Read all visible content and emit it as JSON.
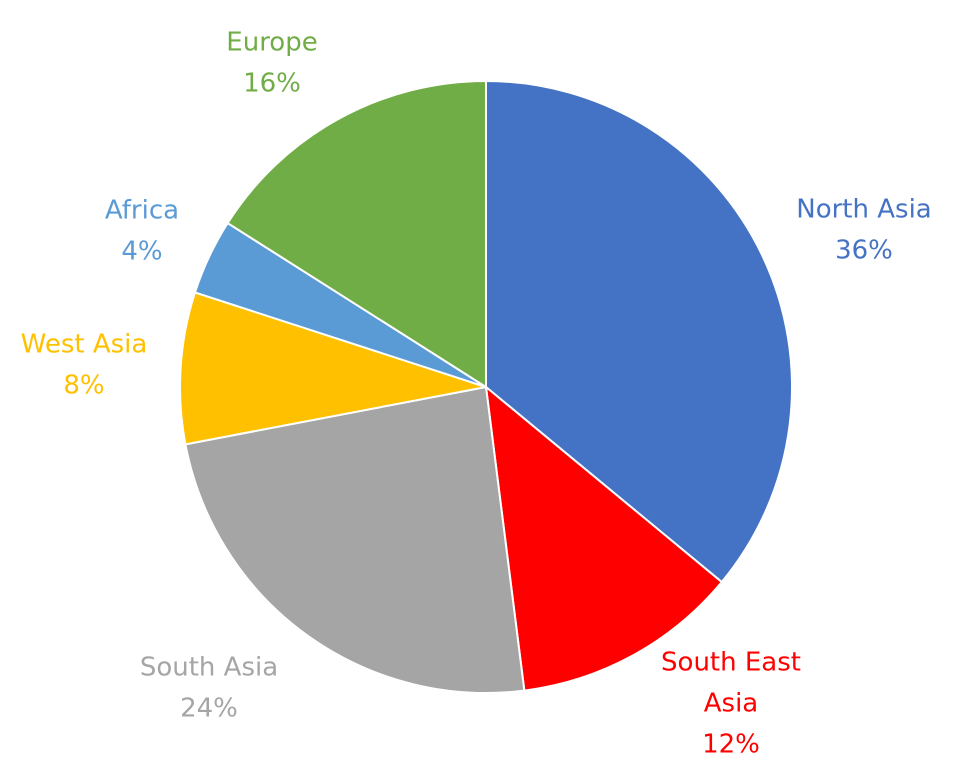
{
  "chart_data": {
    "type": "pie",
    "title": "",
    "start_angle": "12 o'clock, clockwise",
    "legend": "none (labels beside slices)",
    "slices": [
      {
        "label_lines": [
          "North Asia"
        ],
        "percent_label": "36%",
        "value": 36,
        "color": "#4472C4"
      },
      {
        "label_lines": [
          "South East",
          "Asia"
        ],
        "percent_label": "12%",
        "value": 12,
        "color": "#FF0000"
      },
      {
        "label_lines": [
          "South Asia"
        ],
        "percent_label": "24%",
        "value": 24,
        "color": "#A5A5A5"
      },
      {
        "label_lines": [
          "West Asia"
        ],
        "percent_label": "8%",
        "value": 8,
        "color": "#FFC000"
      },
      {
        "label_lines": [
          "Africa"
        ],
        "percent_label": "4%",
        "value": 4,
        "color": "#5B9BD5"
      },
      {
        "label_lines": [
          "Europe"
        ],
        "percent_label": "16%",
        "value": 16,
        "color": "#70AD47"
      }
    ]
  }
}
